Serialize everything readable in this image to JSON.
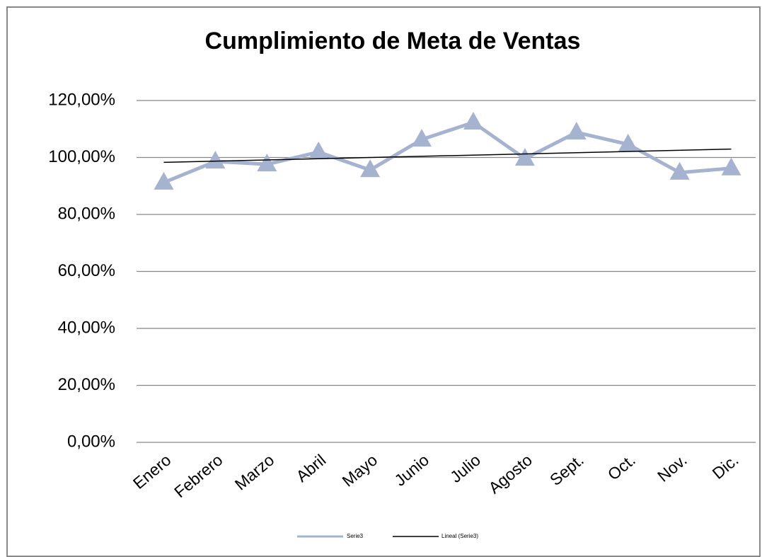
{
  "chart_data": {
    "type": "line",
    "title": "Cumplimiento  de Meta de Ventas",
    "categories": [
      "Enero",
      "Febrero",
      "Marzo",
      "Abril",
      "Mayo",
      "Junio",
      "Julio",
      "Agosto",
      "Sept.",
      "Oct.",
      "Nov.",
      "Dic."
    ],
    "series": [
      {
        "name": "Serie3",
        "color": "#a5b3d0",
        "values": [
          91.2,
          98.6,
          97.6,
          101.9,
          95.6,
          106.3,
          112.3,
          99.6,
          108.8,
          104.6,
          94.7,
          96.2
        ]
      }
    ],
    "trendline": {
      "name": "Lineal (Serie3)",
      "color": "#000000"
    },
    "ylim": [
      0,
      120
    ],
    "yticks": [
      {
        "value": 0,
        "label": "0,00%"
      },
      {
        "value": 20,
        "label": "20,00%"
      },
      {
        "value": 40,
        "label": "40,00%"
      },
      {
        "value": 60,
        "label": "60,00%"
      },
      {
        "value": 80,
        "label": "80,00%"
      },
      {
        "value": 100,
        "label": "100,00%"
      },
      {
        "value": 120,
        "label": "120,00%"
      }
    ],
    "grid": true,
    "legend": "bottom"
  }
}
